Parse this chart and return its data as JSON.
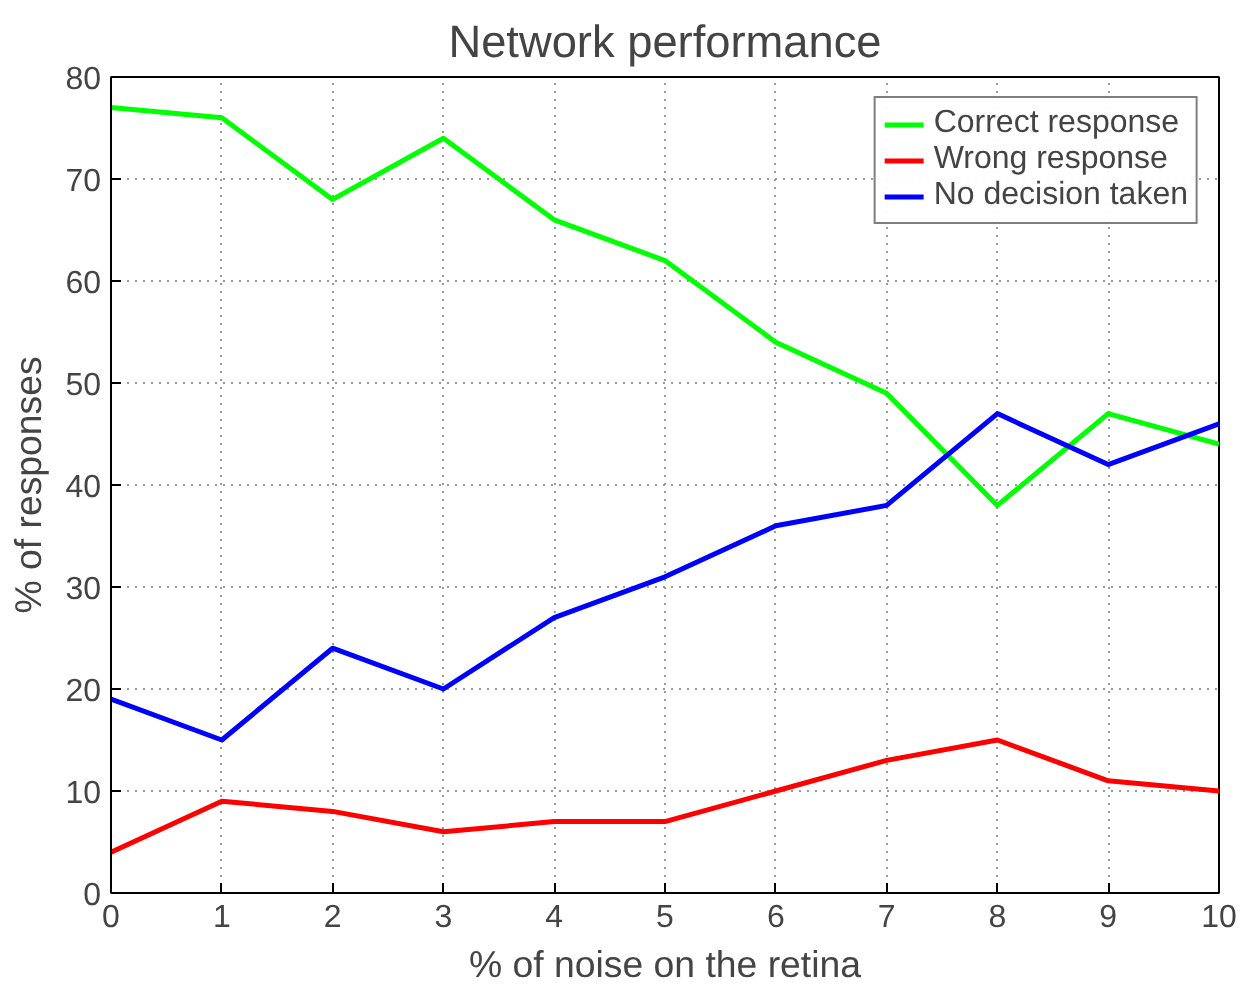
{
  "chart_data": {
    "type": "line",
    "title": "Network performance",
    "xlabel": "% of noise on the retina",
    "ylabel": "% of responses",
    "x": [
      0,
      1,
      2,
      3,
      4,
      5,
      6,
      7,
      8,
      9,
      10
    ],
    "series": [
      {
        "name": "Correct response",
        "color": "#00ff00",
        "values": [
          77,
          76,
          68,
          74,
          66,
          62,
          54,
          49,
          38,
          47,
          44
        ]
      },
      {
        "name": "Wrong response",
        "color": "#ff0000",
        "values": [
          4,
          9,
          8,
          6,
          7,
          7,
          10,
          13,
          15,
          11,
          10
        ]
      },
      {
        "name": "No decision taken",
        "color": "#0000ff",
        "values": [
          19,
          15,
          24,
          20,
          27,
          31,
          36,
          38,
          47,
          42,
          46
        ]
      }
    ],
    "xlim": [
      0,
      10
    ],
    "xticks": [
      0,
      1,
      2,
      3,
      4,
      5,
      6,
      7,
      8,
      9,
      10
    ],
    "ylim": [
      0,
      80
    ],
    "yticks": [
      0,
      10,
      20,
      30,
      40,
      50,
      60,
      70,
      80
    ],
    "grid": true,
    "legend": "top right",
    "line_style": "solid",
    "marker": "none"
  }
}
